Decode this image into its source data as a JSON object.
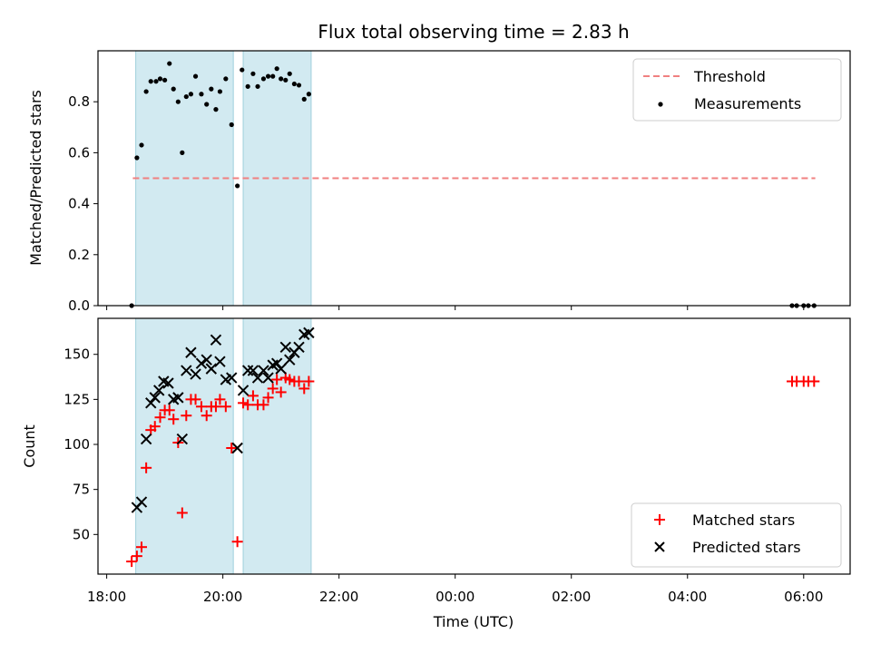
{
  "chart_data": [
    {
      "type": "scatter",
      "title": "Flux total observing time = 2.83 h",
      "ylabel": "Matched/Predicted stars",
      "xlabel": "",
      "ylim": [
        0,
        1.0
      ],
      "yticks": [
        0.0,
        0.2,
        0.4,
        0.6,
        0.8
      ],
      "ytick_labels": [
        "0.0",
        "0.2",
        "0.4",
        "0.6",
        "0.8"
      ],
      "xlim": [
        17.85,
        30.8
      ],
      "xticks": [
        18,
        20,
        22,
        24,
        26,
        28,
        30
      ],
      "grid": false,
      "legend_position": "top-right",
      "shaded_intervals": [
        [
          18.5,
          20.18
        ],
        [
          20.35,
          21.52
        ]
      ],
      "shade_color": "#add8e6",
      "threshold": {
        "name": "Threshold",
        "value": 0.5,
        "x": [
          18.45,
          30.2
        ],
        "color": "#f08080"
      },
      "series": [
        {
          "name": "Measurements",
          "color": "#000000",
          "points": [
            [
              18.43,
              0.0
            ],
            [
              18.52,
              0.58
            ],
            [
              18.6,
              0.63
            ],
            [
              18.68,
              0.84
            ],
            [
              18.76,
              0.88
            ],
            [
              18.85,
              0.88
            ],
            [
              18.92,
              0.89
            ],
            [
              19.0,
              0.885
            ],
            [
              19.08,
              0.95
            ],
            [
              19.15,
              0.85
            ],
            [
              19.23,
              0.8
            ],
            [
              19.3,
              0.6
            ],
            [
              19.37,
              0.82
            ],
            [
              19.45,
              0.83
            ],
            [
              19.53,
              0.9
            ],
            [
              19.63,
              0.83
            ],
            [
              19.72,
              0.79
            ],
            [
              19.8,
              0.85
            ],
            [
              19.88,
              0.77
            ],
            [
              19.95,
              0.84
            ],
            [
              20.05,
              0.89
            ],
            [
              20.15,
              0.71
            ],
            [
              20.25,
              0.47
            ],
            [
              20.33,
              0.925
            ],
            [
              20.43,
              0.86
            ],
            [
              20.52,
              0.91
            ],
            [
              20.6,
              0.86
            ],
            [
              20.7,
              0.89
            ],
            [
              20.78,
              0.9
            ],
            [
              20.86,
              0.9
            ],
            [
              20.93,
              0.93
            ],
            [
              21.0,
              0.89
            ],
            [
              21.08,
              0.885
            ],
            [
              21.15,
              0.91
            ],
            [
              21.23,
              0.87
            ],
            [
              21.31,
              0.865
            ],
            [
              21.4,
              0.81
            ],
            [
              21.48,
              0.83
            ],
            [
              29.8,
              0.0
            ],
            [
              29.88,
              0.0
            ],
            [
              30.0,
              0.0
            ],
            [
              30.08,
              0.0
            ],
            [
              30.18,
              0.0
            ]
          ]
        }
      ]
    },
    {
      "type": "scatter",
      "title": "",
      "ylabel": "Count",
      "xlabel": "Time (UTC)",
      "ylim": [
        28,
        170
      ],
      "yticks": [
        50,
        75,
        100,
        125,
        150
      ],
      "ytick_labels": [
        "50",
        "75",
        "100",
        "125",
        "150"
      ],
      "xlim": [
        17.85,
        30.8
      ],
      "xticks": [
        18,
        20,
        22,
        24,
        26,
        28,
        30
      ],
      "xtick_labels": [
        "18:00",
        "20:00",
        "22:00",
        "00:00",
        "02:00",
        "04:00",
        "06:00"
      ],
      "grid": false,
      "legend_position": "bottom-right",
      "shaded_intervals": [
        [
          18.5,
          20.18
        ],
        [
          20.35,
          21.52
        ]
      ],
      "shade_color": "#add8e6",
      "series": [
        {
          "name": "Matched stars",
          "color": "#ff0000",
          "marker": "plus",
          "points": [
            [
              18.43,
              35
            ],
            [
              18.52,
              38
            ],
            [
              18.6,
              43
            ],
            [
              18.68,
              87
            ],
            [
              18.76,
              108
            ],
            [
              18.83,
              110
            ],
            [
              18.92,
              115
            ],
            [
              19.0,
              119
            ],
            [
              19.08,
              119
            ],
            [
              19.15,
              114
            ],
            [
              19.23,
              101
            ],
            [
              19.3,
              62
            ],
            [
              19.37,
              116
            ],
            [
              19.45,
              125
            ],
            [
              19.53,
              125
            ],
            [
              19.63,
              121
            ],
            [
              19.72,
              116
            ],
            [
              19.8,
              121
            ],
            [
              19.88,
              121
            ],
            [
              19.95,
              125
            ],
            [
              20.05,
              121
            ],
            [
              20.15,
              98
            ],
            [
              20.25,
              46
            ],
            [
              20.35,
              123
            ],
            [
              20.43,
              122
            ],
            [
              20.52,
              127
            ],
            [
              20.6,
              122
            ],
            [
              20.7,
              122
            ],
            [
              20.78,
              126
            ],
            [
              20.86,
              131
            ],
            [
              20.93,
              136
            ],
            [
              21.0,
              129
            ],
            [
              21.08,
              137
            ],
            [
              21.15,
              136
            ],
            [
              21.23,
              135
            ],
            [
              21.31,
              135
            ],
            [
              21.4,
              131
            ],
            [
              21.48,
              135
            ],
            [
              29.8,
              135
            ],
            [
              29.88,
              135
            ],
            [
              30.0,
              135
            ],
            [
              30.08,
              135
            ],
            [
              30.18,
              135
            ]
          ]
        },
        {
          "name": "Predicted stars",
          "color": "#000000",
          "marker": "x",
          "points": [
            [
              18.52,
              65
            ],
            [
              18.6,
              68
            ],
            [
              18.68,
              103
            ],
            [
              18.76,
              123
            ],
            [
              18.83,
              126
            ],
            [
              18.9,
              130
            ],
            [
              18.98,
              135
            ],
            [
              19.06,
              134
            ],
            [
              19.15,
              125
            ],
            [
              19.23,
              126
            ],
            [
              19.3,
              103
            ],
            [
              19.37,
              141
            ],
            [
              19.45,
              151
            ],
            [
              19.53,
              139
            ],
            [
              19.63,
              145
            ],
            [
              19.72,
              147
            ],
            [
              19.8,
              142
            ],
            [
              19.88,
              158
            ],
            [
              19.95,
              146
            ],
            [
              20.05,
              136
            ],
            [
              20.15,
              137
            ],
            [
              20.25,
              98
            ],
            [
              20.35,
              130
            ],
            [
              20.43,
              141
            ],
            [
              20.52,
              141
            ],
            [
              20.6,
              137
            ],
            [
              20.7,
              141
            ],
            [
              20.78,
              137
            ],
            [
              20.86,
              144
            ],
            [
              20.93,
              145
            ],
            [
              21.0,
              142
            ],
            [
              21.08,
              154
            ],
            [
              21.15,
              147
            ],
            [
              21.23,
              151
            ],
            [
              21.31,
              154
            ],
            [
              21.4,
              161
            ],
            [
              21.48,
              162
            ]
          ]
        }
      ]
    }
  ]
}
